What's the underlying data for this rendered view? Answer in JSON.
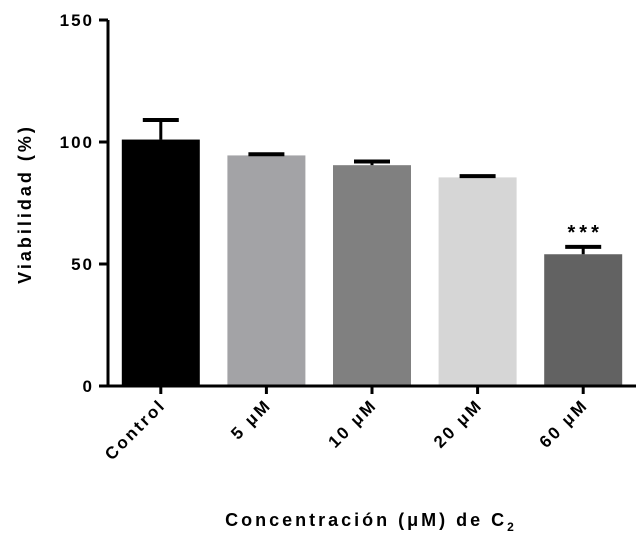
{
  "chart_data": {
    "type": "bar",
    "ylabel": "Viabilidad (%)",
    "xlabel_main": "Concentración (μM) de C",
    "xlabel_subscript": "2",
    "ylim": [
      0,
      150
    ],
    "yticks": [
      0,
      50,
      100,
      150
    ],
    "grid": false,
    "categories": [
      "Control",
      "5 μM",
      "10 μM",
      "20 μM",
      "60 μM"
    ],
    "values": [
      101,
      94.5,
      90.5,
      85.5,
      54
    ],
    "error_upper": [
      8,
      0.5,
      1.5,
      0.5,
      3
    ],
    "colors": [
      "#000000",
      "#a3a3a6",
      "#808080",
      "#d6d6d6",
      "#626262"
    ],
    "annotations": [
      {
        "category": "60 μM",
        "text": "***"
      }
    ]
  }
}
